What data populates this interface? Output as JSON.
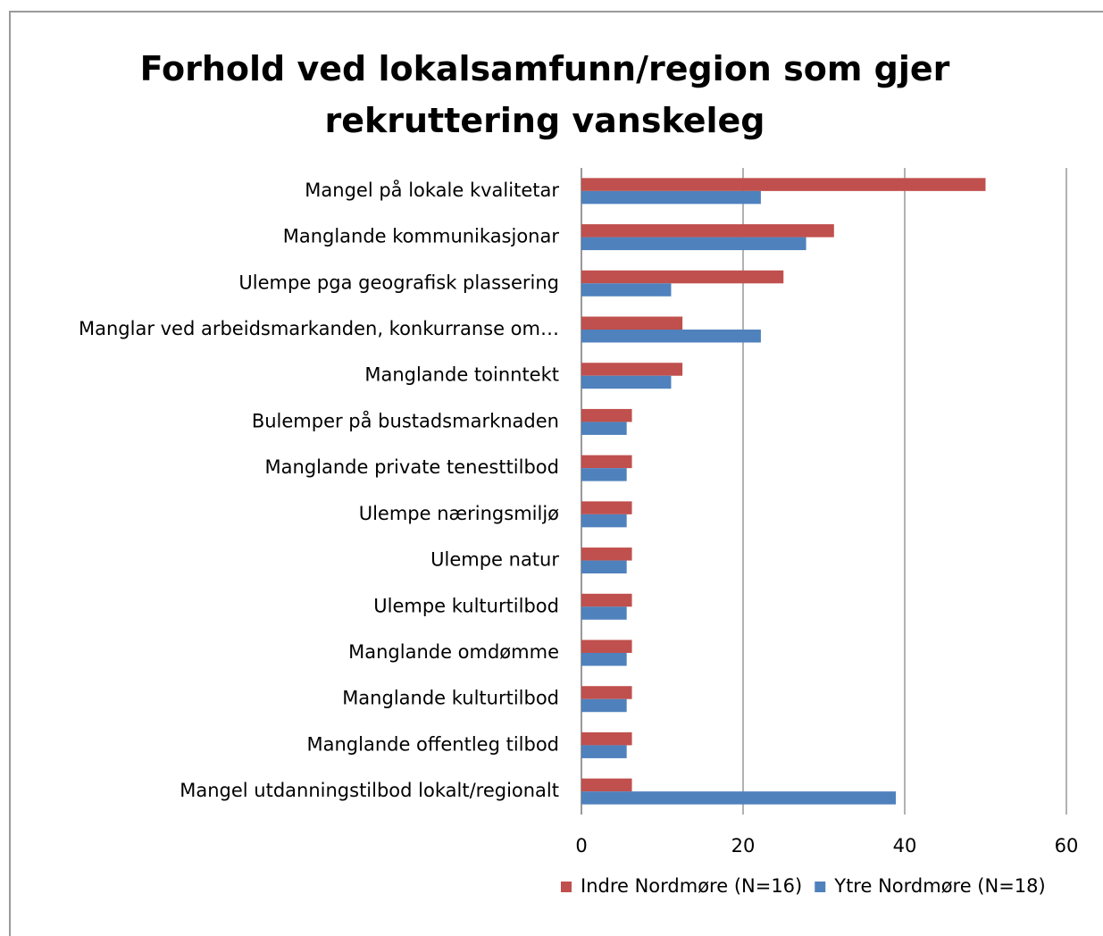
{
  "chart_data": {
    "type": "bar",
    "orientation": "horizontal",
    "title": "Forhold ved lokalsamfunn/region som gjer rekruttering vanskeleg",
    "categories": [
      "Mangel på lokale kvalitetar",
      "Manglande kommunikasjonar",
      "Ulempe pga geografisk plassering",
      "Manglar ved arbeidsmarkanden, konkurranse om…",
      "Manglande toinntekt",
      "Bulemper på bustadsmarknaden",
      "Manglande private tenesttilbod",
      "Ulempe næringsmiljø",
      "Ulempe natur",
      "Ulempe kulturtilbod",
      "Manglande omdømme",
      "Manglande kulturtilbod",
      "Manglande offentleg tilbod",
      "Mangel utdanningstilbod lokalt/regionalt"
    ],
    "series": [
      {
        "name": "Indre Nordmøre (N=16)",
        "color": "#c0504d",
        "values": [
          50,
          31.25,
          25,
          12.5,
          12.5,
          6.25,
          6.25,
          6.25,
          6.25,
          6.25,
          6.25,
          6.25,
          6.25,
          6.25
        ]
      },
      {
        "name": "Ytre Nordmøre (N=18)",
        "color": "#4f81bd",
        "values": [
          22.2,
          27.8,
          11.1,
          22.2,
          11.1,
          5.6,
          5.6,
          5.6,
          5.6,
          5.6,
          5.6,
          5.6,
          5.6,
          38.9
        ]
      }
    ],
    "xlim": [
      0,
      60
    ],
    "xticks": [
      0,
      20,
      40,
      60
    ],
    "grid": true,
    "legend": "bottom"
  }
}
